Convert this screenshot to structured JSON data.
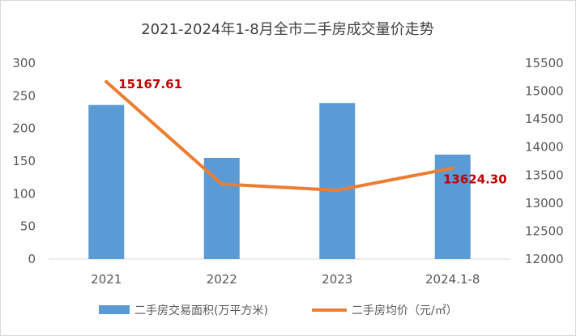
{
  "chart_data": {
    "type": "bar",
    "title": "2021-2024年1-8月全市二手房成交量价走势",
    "categories": [
      "2021",
      "2022",
      "2023",
      "2024.1-8"
    ],
    "series": [
      {
        "name": "二手房交易面积(万平方米)",
        "type": "bar",
        "axis": "left",
        "color": "#5b9bd5",
        "values": [
          236,
          155,
          239,
          160
        ]
      },
      {
        "name": "二手房均价（元/㎡）",
        "type": "line",
        "axis": "right",
        "color": "#ed7d31",
        "values": [
          15167.61,
          13340,
          13230,
          13624.3
        ]
      }
    ],
    "y_left": {
      "min": 0,
      "max": 300,
      "ticks": [
        "0",
        "50",
        "100",
        "150",
        "200",
        "250",
        "300"
      ]
    },
    "y_right": {
      "min": 12000,
      "max": 15500,
      "ticks": [
        "12000",
        "12500",
        "13000",
        "13500",
        "14000",
        "14500",
        "15000",
        "15500"
      ]
    },
    "data_labels": [
      "15167.61",
      "13624.30"
    ],
    "grid": false,
    "legend_position": "bottom"
  }
}
